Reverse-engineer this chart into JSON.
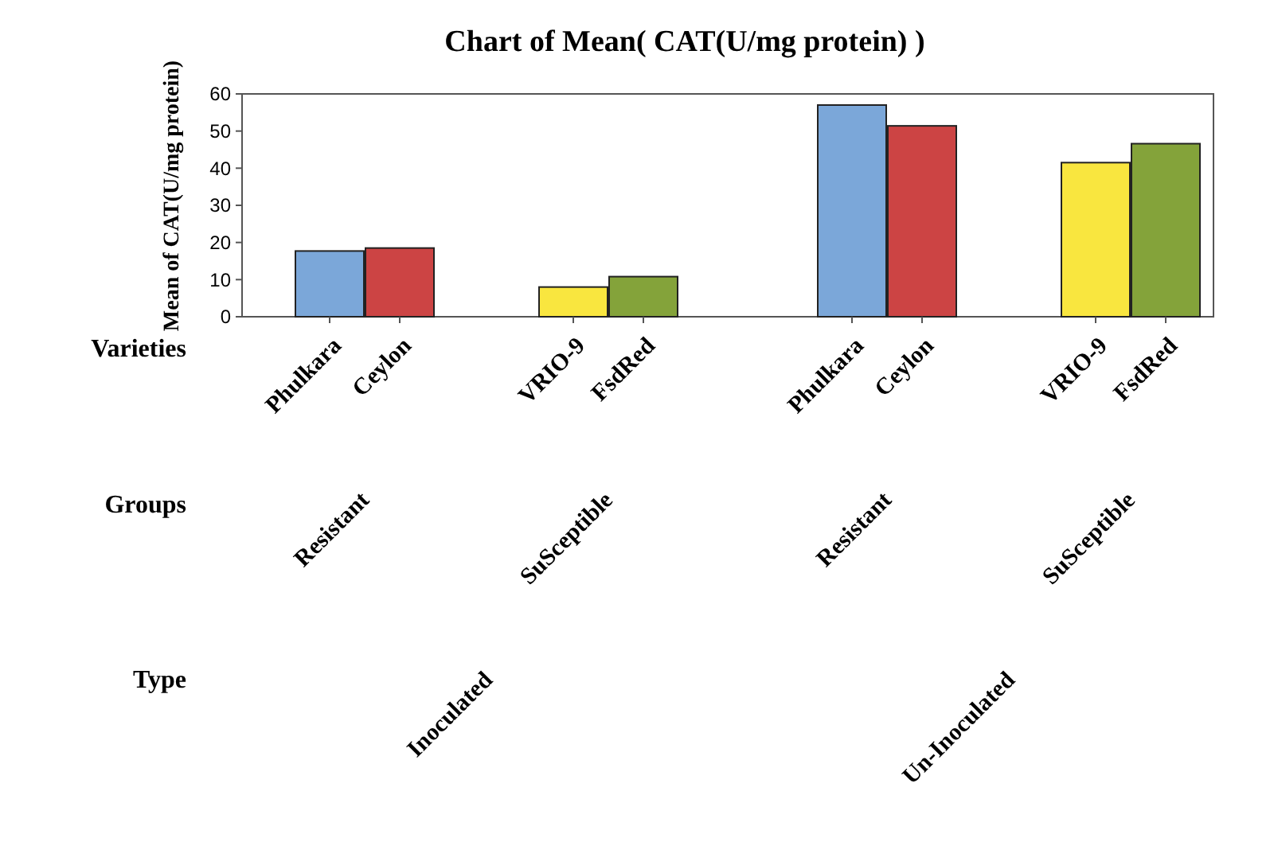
{
  "chart_data": {
    "type": "bar",
    "title": "Chart of Mean( CAT(U/mg protein) )",
    "ylabel": "Mean of CAT(U/mg protein)",
    "categories": [
      "Phulkara",
      "Ceylon",
      "VRIO-9",
      "FsdRed",
      "Phulkara",
      "Ceylon",
      "VRIO-9",
      "FsdRed"
    ],
    "values": [
      17.7,
      18.5,
      8.0,
      10.8,
      57.0,
      51.4,
      41.5,
      46.6
    ],
    "colors": [
      "#7ba7d9",
      "#cc4444",
      "#f9e63f",
      "#84a33a",
      "#7ba7d9",
      "#cc4444",
      "#f9e63f",
      "#84a33a"
    ],
    "ylim": [
      0,
      60
    ],
    "yticks": [
      0,
      10,
      20,
      30,
      40,
      50,
      60
    ],
    "annotations": [
      "Varieties",
      "Groups",
      "Type",
      "Resistant",
      "SuSceptible",
      "Resistant",
      "SuSceptible",
      "Inoculated",
      "Un-Inoculated"
    ],
    "grid": false
  }
}
